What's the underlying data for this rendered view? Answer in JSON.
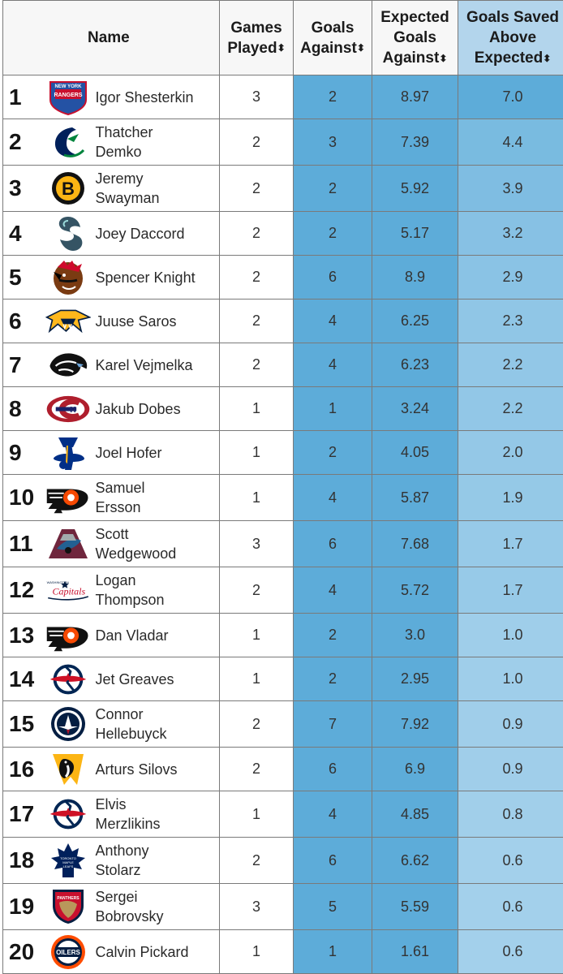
{
  "headers": {
    "name": "Name",
    "games_played": [
      "Games",
      "Played"
    ],
    "goals_against": [
      "Goals",
      "Against"
    ],
    "expected_goals_against": [
      "Expected",
      "Goals",
      "Against"
    ],
    "gsax": [
      "Goals Saved",
      "Above",
      "Expected"
    ],
    "sort_icon": "⬍"
  },
  "colors": {
    "gp_bg": "#ffffff",
    "ga_bg": "#5dacd9",
    "xga_bg": "#5dacd9",
    "gsax_header_bg": "#b3d5ec"
  },
  "rows": [
    {
      "rank": "1",
      "logo": "rangers-logo",
      "logo_text": "NEW YORK RANGERS",
      "name": [
        "Igor Shesterkin"
      ],
      "gp": "3",
      "ga": "2",
      "xga": "8.97",
      "gsax": "7.0"
    },
    {
      "rank": "2",
      "logo": "canucks-logo",
      "name": [
        "Thatcher",
        "Demko"
      ],
      "gp": "2",
      "ga": "3",
      "xga": "7.39",
      "gsax": "4.4"
    },
    {
      "rank": "3",
      "logo": "bruins-logo",
      "logo_text": "B",
      "name": [
        "Jeremy",
        "Swayman"
      ],
      "gp": "2",
      "ga": "2",
      "xga": "5.92",
      "gsax": "3.9"
    },
    {
      "rank": "4",
      "logo": "kraken-logo",
      "logo_text": "S",
      "name": [
        "Joey Daccord"
      ],
      "gp": "2",
      "ga": "2",
      "xga": "5.17",
      "gsax": "3.2"
    },
    {
      "rank": "5",
      "logo": "blackhawks-logo",
      "name": [
        "Spencer Knight"
      ],
      "gp": "2",
      "ga": "6",
      "xga": "8.9",
      "gsax": "2.9"
    },
    {
      "rank": "6",
      "logo": "predators-logo",
      "name": [
        "Juuse Saros"
      ],
      "gp": "2",
      "ga": "4",
      "xga": "6.25",
      "gsax": "2.3"
    },
    {
      "rank": "7",
      "logo": "flames-logo",
      "name": [
        "Karel Vejmelka"
      ],
      "gp": "2",
      "ga": "4",
      "xga": "6.23",
      "gsax": "2.2"
    },
    {
      "rank": "8",
      "logo": "canadiens-logo",
      "logo_text": "CH",
      "name": [
        "Jakub Dobes"
      ],
      "gp": "1",
      "ga": "1",
      "xga": "3.24",
      "gsax": "2.2"
    },
    {
      "rank": "9",
      "logo": "blues-logo",
      "name": [
        "Joel Hofer"
      ],
      "gp": "1",
      "ga": "2",
      "xga": "4.05",
      "gsax": "2.0"
    },
    {
      "rank": "10",
      "logo": "flyers-logo",
      "name": [
        "Samuel",
        "Ersson"
      ],
      "gp": "1",
      "ga": "4",
      "xga": "5.87",
      "gsax": "1.9"
    },
    {
      "rank": "11",
      "logo": "avalanche-logo",
      "name": [
        "Scott",
        "Wedgewood"
      ],
      "gp": "3",
      "ga": "6",
      "xga": "7.68",
      "gsax": "1.7"
    },
    {
      "rank": "12",
      "logo": "capitals-logo",
      "logo_text": "Capitals",
      "name": [
        "Logan",
        "Thompson"
      ],
      "gp": "2",
      "ga": "4",
      "xga": "5.72",
      "gsax": "1.7"
    },
    {
      "rank": "13",
      "logo": "flyers-logo",
      "name": [
        "Dan Vladar"
      ],
      "gp": "1",
      "ga": "2",
      "xga": "3.0",
      "gsax": "1.0"
    },
    {
      "rank": "14",
      "logo": "blue-jackets-logo",
      "name": [
        "Jet Greaves"
      ],
      "gp": "1",
      "ga": "2",
      "xga": "2.95",
      "gsax": "1.0"
    },
    {
      "rank": "15",
      "logo": "jets-logo",
      "name": [
        "Connor",
        "Hellebuyck"
      ],
      "gp": "2",
      "ga": "7",
      "xga": "7.92",
      "gsax": "0.9"
    },
    {
      "rank": "16",
      "logo": "penguins-logo",
      "name": [
        "Arturs Silovs"
      ],
      "gp": "2",
      "ga": "6",
      "xga": "6.9",
      "gsax": "0.9"
    },
    {
      "rank": "17",
      "logo": "blue-jackets-logo",
      "name": [
        "Elvis",
        "Merzlikins"
      ],
      "gp": "1",
      "ga": "4",
      "xga": "4.85",
      "gsax": "0.8"
    },
    {
      "rank": "18",
      "logo": "maple-leafs-logo",
      "logo_text": "TORONTO MAPLE LEAFS",
      "name": [
        "Anthony",
        "Stolarz"
      ],
      "gp": "2",
      "ga": "6",
      "xga": "6.62",
      "gsax": "0.6"
    },
    {
      "rank": "19",
      "logo": "panthers-logo",
      "logo_text": "PANTHERS",
      "name": [
        "Sergei",
        "Bobrovsky"
      ],
      "gp": "3",
      "ga": "5",
      "xga": "5.59",
      "gsax": "0.6"
    },
    {
      "rank": "20",
      "logo": "oilers-logo",
      "logo_text": "OILERS",
      "name": [
        "Calvin Pickard"
      ],
      "gp": "1",
      "ga": "1",
      "xga": "1.61",
      "gsax": "0.6"
    }
  ]
}
